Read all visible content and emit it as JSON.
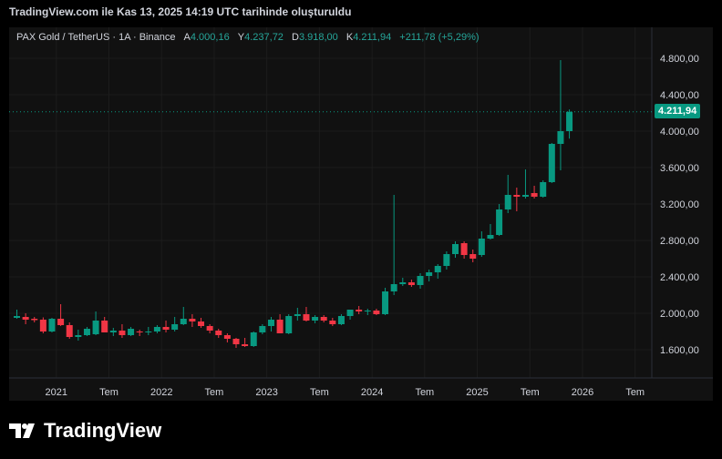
{
  "caption": "TradingView.com ile Kas 13, 2025 14:19 UTC tarihinde oluşturuldu",
  "legend": {
    "symbol": "PAX Gold / TetherUS · 1A · Binance",
    "open_label": "A",
    "open": "4.000,16",
    "high_label": "Y",
    "high": "4.237,72",
    "low_label": "D",
    "low": "3.918,00",
    "close_label": "K",
    "close": "4.211,94",
    "change": "+211,78 (+5,29%)"
  },
  "current_price_label": "4.211,94",
  "brand": {
    "name": "TradingView"
  },
  "colors": {
    "up": "#089981",
    "down": "#f23645",
    "background": "#111111"
  },
  "chart_data": {
    "type": "candlestick",
    "y_ticks": [
      {
        "value": 1600,
        "label": "1.600,00"
      },
      {
        "value": 2000,
        "label": "2.000,00"
      },
      {
        "value": 2400,
        "label": "2.400,00"
      },
      {
        "value": 2800,
        "label": "2.800,00"
      },
      {
        "value": 3200,
        "label": "3.200,00"
      },
      {
        "value": 3600,
        "label": "3.600,00"
      },
      {
        "value": 4000,
        "label": "4.000,00"
      },
      {
        "value": 4400,
        "label": "4.400,00"
      },
      {
        "value": 4800,
        "label": "4.800,00"
      }
    ],
    "ylim": [
      1200,
      4900
    ],
    "x_ticks": [
      {
        "index": 4.5,
        "label": "2021"
      },
      {
        "index": 10.5,
        "label": "Tem"
      },
      {
        "index": 16.5,
        "label": "2022"
      },
      {
        "index": 22.5,
        "label": "Tem"
      },
      {
        "index": 28.5,
        "label": "2023"
      },
      {
        "index": 34.5,
        "label": "Tem"
      },
      {
        "index": 40.5,
        "label": "2024"
      },
      {
        "index": 46.5,
        "label": "Tem"
      },
      {
        "index": 52.5,
        "label": "2025"
      },
      {
        "index": 58.5,
        "label": "Tem"
      },
      {
        "index": 64.5,
        "label": "2026"
      },
      {
        "index": 70.5,
        "label": "Tem"
      }
    ],
    "candles": [
      {
        "o": 1950,
        "h": 2040,
        "l": 1940,
        "c": 1970
      },
      {
        "o": 1960,
        "h": 2000,
        "l": 1880,
        "c": 1930
      },
      {
        "o": 1940,
        "h": 1960,
        "l": 1900,
        "c": 1925
      },
      {
        "o": 1930,
        "h": 1955,
        "l": 1780,
        "c": 1800
      },
      {
        "o": 1800,
        "h": 1950,
        "l": 1790,
        "c": 1940
      },
      {
        "o": 1940,
        "h": 2100,
        "l": 1860,
        "c": 1870
      },
      {
        "o": 1870,
        "h": 1900,
        "l": 1720,
        "c": 1740
      },
      {
        "o": 1740,
        "h": 1820,
        "l": 1700,
        "c": 1760
      },
      {
        "o": 1760,
        "h": 1850,
        "l": 1750,
        "c": 1830
      },
      {
        "o": 1770,
        "h": 2020,
        "l": 1760,
        "c": 1920
      },
      {
        "o": 1920,
        "h": 1960,
        "l": 1800,
        "c": 1790
      },
      {
        "o": 1790,
        "h": 1840,
        "l": 1750,
        "c": 1810
      },
      {
        "o": 1810,
        "h": 1880,
        "l": 1730,
        "c": 1760
      },
      {
        "o": 1760,
        "h": 1850,
        "l": 1750,
        "c": 1830
      },
      {
        "o": 1800,
        "h": 1820,
        "l": 1750,
        "c": 1790
      },
      {
        "o": 1790,
        "h": 1850,
        "l": 1760,
        "c": 1800
      },
      {
        "o": 1800,
        "h": 1870,
        "l": 1780,
        "c": 1850
      },
      {
        "o": 1850,
        "h": 1920,
        "l": 1790,
        "c": 1820
      },
      {
        "o": 1820,
        "h": 1960,
        "l": 1800,
        "c": 1880
      },
      {
        "o": 1880,
        "h": 2070,
        "l": 1870,
        "c": 1940
      },
      {
        "o": 1940,
        "h": 1990,
        "l": 1850,
        "c": 1910
      },
      {
        "o": 1910,
        "h": 1950,
        "l": 1840,
        "c": 1860
      },
      {
        "o": 1860,
        "h": 1880,
        "l": 1780,
        "c": 1810
      },
      {
        "o": 1810,
        "h": 1830,
        "l": 1730,
        "c": 1760
      },
      {
        "o": 1760,
        "h": 1780,
        "l": 1680,
        "c": 1720
      },
      {
        "o": 1720,
        "h": 1730,
        "l": 1620,
        "c": 1660
      },
      {
        "o": 1660,
        "h": 1730,
        "l": 1630,
        "c": 1640
      },
      {
        "o": 1640,
        "h": 1800,
        "l": 1630,
        "c": 1790
      },
      {
        "o": 1790,
        "h": 1880,
        "l": 1770,
        "c": 1860
      },
      {
        "o": 1860,
        "h": 1960,
        "l": 1800,
        "c": 1930
      },
      {
        "o": 1930,
        "h": 1990,
        "l": 1800,
        "c": 1780
      },
      {
        "o": 1780,
        "h": 1990,
        "l": 1770,
        "c": 1970
      },
      {
        "o": 1970,
        "h": 2060,
        "l": 1920,
        "c": 1990
      },
      {
        "o": 1990,
        "h": 2070,
        "l": 1910,
        "c": 1920
      },
      {
        "o": 1920,
        "h": 1980,
        "l": 1890,
        "c": 1960
      },
      {
        "o": 1960,
        "h": 1980,
        "l": 1900,
        "c": 1920
      },
      {
        "o": 1920,
        "h": 1950,
        "l": 1860,
        "c": 1880
      },
      {
        "o": 1880,
        "h": 1990,
        "l": 1870,
        "c": 1970
      },
      {
        "o": 1970,
        "h": 2040,
        "l": 1930,
        "c": 2040
      },
      {
        "o": 2040,
        "h": 2080,
        "l": 1990,
        "c": 2020
      },
      {
        "o": 2020,
        "h": 2050,
        "l": 1980,
        "c": 2030
      },
      {
        "o": 2030,
        "h": 2050,
        "l": 1980,
        "c": 1990
      },
      {
        "o": 1990,
        "h": 2280,
        "l": 1980,
        "c": 2240
      },
      {
        "o": 2240,
        "h": 3300,
        "l": 2200,
        "c": 2320
      },
      {
        "o": 2320,
        "h": 2390,
        "l": 2300,
        "c": 2340
      },
      {
        "o": 2340,
        "h": 2370,
        "l": 2290,
        "c": 2310
      },
      {
        "o": 2310,
        "h": 2440,
        "l": 2270,
        "c": 2410
      },
      {
        "o": 2410,
        "h": 2480,
        "l": 2350,
        "c": 2450
      },
      {
        "o": 2450,
        "h": 2540,
        "l": 2380,
        "c": 2520
      },
      {
        "o": 2520,
        "h": 2680,
        "l": 2480,
        "c": 2650
      },
      {
        "o": 2650,
        "h": 2790,
        "l": 2610,
        "c": 2760
      },
      {
        "o": 2770,
        "h": 2790,
        "l": 2600,
        "c": 2640
      },
      {
        "o": 2650,
        "h": 2700,
        "l": 2560,
        "c": 2600
      },
      {
        "o": 2640,
        "h": 2900,
        "l": 2620,
        "c": 2820
      },
      {
        "o": 2820,
        "h": 2980,
        "l": 2810,
        "c": 2860
      },
      {
        "o": 2860,
        "h": 3200,
        "l": 2850,
        "c": 3140
      },
      {
        "o": 3140,
        "h": 3520,
        "l": 3100,
        "c": 3300
      },
      {
        "o": 3300,
        "h": 3380,
        "l": 3120,
        "c": 3280
      },
      {
        "o": 3280,
        "h": 3580,
        "l": 3260,
        "c": 3300
      },
      {
        "o": 3320,
        "h": 3400,
        "l": 3260,
        "c": 3280
      },
      {
        "o": 3280,
        "h": 3460,
        "l": 3270,
        "c": 3440
      },
      {
        "o": 3440,
        "h": 3870,
        "l": 3430,
        "c": 3860
      },
      {
        "o": 3860,
        "h": 4780,
        "l": 3570,
        "c": 4000
      },
      {
        "o": 4000,
        "h": 4238,
        "l": 3918,
        "c": 4212
      }
    ],
    "last_price": 4211.94
  }
}
